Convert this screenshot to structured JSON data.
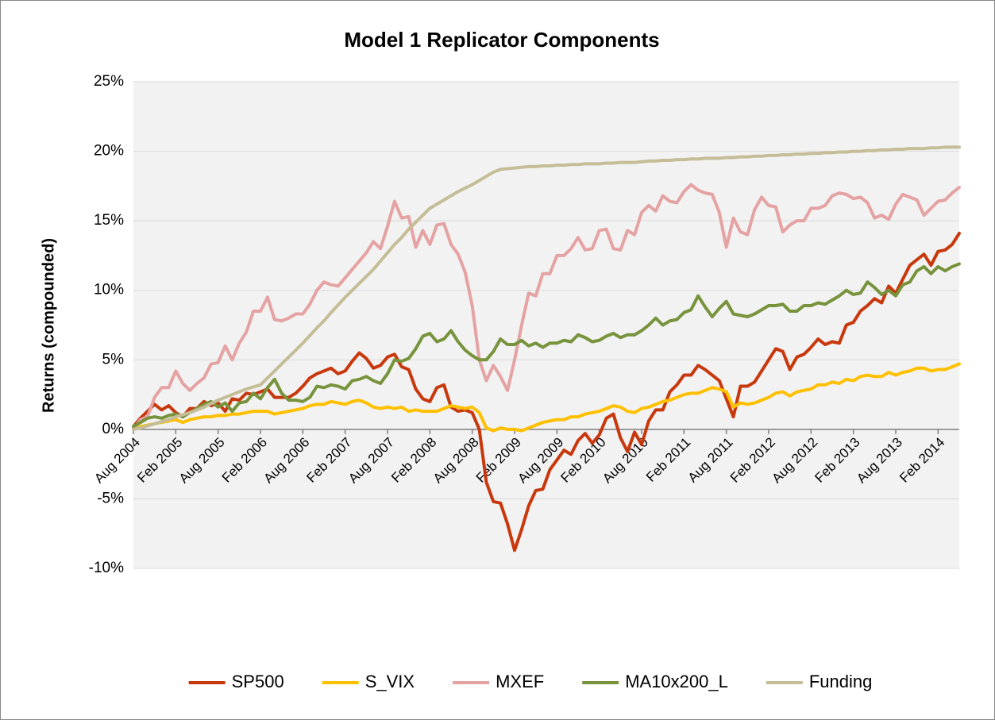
{
  "chart_data": {
    "type": "line",
    "title": "Model 1 Replicator Components",
    "y_label": "Returns (compounded)",
    "categories": [
      "Aug 2004",
      null,
      null,
      null,
      null,
      null,
      "Feb 2005",
      null,
      null,
      null,
      null,
      null,
      "Aug 2005",
      null,
      null,
      null,
      null,
      null,
      "Feb 2006",
      null,
      null,
      null,
      null,
      null,
      "Aug 2006",
      null,
      null,
      null,
      null,
      null,
      "Feb 2007",
      null,
      null,
      null,
      null,
      null,
      "Aug 2007",
      null,
      null,
      null,
      null,
      null,
      "Feb 2008",
      null,
      null,
      null,
      null,
      null,
      "Aug 2008",
      null,
      null,
      null,
      null,
      null,
      "Feb 2009",
      null,
      null,
      null,
      null,
      null,
      "Aug 2009",
      null,
      null,
      null,
      null,
      null,
      "Feb 2010",
      null,
      null,
      null,
      null,
      null,
      "Aug 2010",
      null,
      null,
      null,
      null,
      null,
      "Feb 2011",
      null,
      null,
      null,
      null,
      null,
      "Aug 2011",
      null,
      null,
      null,
      null,
      null,
      "Feb 2012",
      null,
      null,
      null,
      null,
      null,
      "Aug 2012",
      null,
      null,
      null,
      null,
      null,
      "Feb 2013",
      null,
      null,
      null,
      null,
      null,
      "Aug 2013",
      null,
      null,
      null,
      null,
      null,
      "Feb 2014",
      null,
      null,
      null
    ],
    "ylim": [
      -10,
      25
    ],
    "yticks": [
      {
        "value": -10,
        "label": "-10%"
      },
      {
        "value": -5,
        "label": "-5%"
      },
      {
        "value": 0,
        "label": "0%"
      },
      {
        "value": 5,
        "label": "5%"
      },
      {
        "value": 10,
        "label": "10%"
      },
      {
        "value": 15,
        "label": "15%"
      },
      {
        "value": 20,
        "label": "20%"
      },
      {
        "value": 25,
        "label": "25%"
      }
    ],
    "grid": true,
    "legend": "bottom",
    "series": [
      {
        "name": "SP500",
        "color": "#c8380d",
        "values": [
          0.2,
          0.8,
          1.3,
          1.8,
          1.4,
          1.7,
          1.2,
          0.9,
          1.5,
          1.5,
          2.0,
          1.7,
          1.9,
          1.3,
          2.2,
          2.1,
          2.6,
          2.5,
          2.7,
          2.9,
          2.3,
          2.3,
          2.3,
          2.6,
          3.1,
          3.7,
          4.0,
          4.2,
          4.4,
          4.0,
          4.2,
          4.9,
          5.5,
          5.1,
          4.4,
          4.6,
          5.2,
          5.4,
          4.5,
          4.3,
          2.9,
          2.2,
          2.0,
          3.0,
          3.2,
          1.6,
          1.3,
          1.4,
          1.2,
          0,
          -3.8,
          -5.2,
          -5.3,
          -6.8,
          -8.7,
          -7.2,
          -5.5,
          -4.4,
          -4.3,
          -2.9,
          -2.2,
          -1.5,
          -1.8,
          -0.8,
          -0.3,
          -1.0,
          -0.4,
          0.8,
          1.1,
          -0.6,
          -1.6,
          -0.2,
          -1.1,
          0.6,
          1.4,
          1.4,
          2.7,
          3.2,
          3.9,
          3.9,
          4.6,
          4.3,
          3.9,
          3.5,
          2.2,
          0.9,
          3.1,
          3.1,
          3.4,
          4.2,
          5.0,
          5.8,
          5.6,
          4.3,
          5.2,
          5.4,
          5.9,
          6.5,
          6.1,
          6.3,
          6.2,
          7.5,
          7.7,
          8.5,
          8.9,
          9.4,
          9.1,
          10.3,
          9.8,
          10.8,
          11.8,
          12.2,
          12.6,
          11.8,
          12.8,
          12.9,
          13.3,
          14.1
        ]
      },
      {
        "name": "S_VIX",
        "color": "#ffc000",
        "values": [
          0,
          0.2,
          0.3,
          0.4,
          0.5,
          0.6,
          0.7,
          0.5,
          0.7,
          0.8,
          0.9,
          0.9,
          1.0,
          1.0,
          1.1,
          1.1,
          1.2,
          1.3,
          1.3,
          1.3,
          1.1,
          1.2,
          1.3,
          1.4,
          1.5,
          1.7,
          1.8,
          1.8,
          2.0,
          1.9,
          1.8,
          2.0,
          2.1,
          1.9,
          1.6,
          1.5,
          1.6,
          1.5,
          1.6,
          1.3,
          1.4,
          1.3,
          1.3,
          1.3,
          1.5,
          1.7,
          1.6,
          1.5,
          1.6,
          1.2,
          0.1,
          -0.1,
          0.1,
          0.0,
          0.0,
          -0.1,
          0.1,
          0.3,
          0.5,
          0.6,
          0.7,
          0.7,
          0.9,
          0.9,
          1.1,
          1.2,
          1.3,
          1.5,
          1.7,
          1.6,
          1.3,
          1.2,
          1.5,
          1.6,
          1.8,
          2.0,
          2.1,
          2.3,
          2.5,
          2.6,
          2.6,
          2.8,
          3.0,
          2.9,
          2.7,
          1.6,
          1.9,
          1.8,
          1.9,
          2.1,
          2.3,
          2.6,
          2.7,
          2.4,
          2.7,
          2.8,
          2.9,
          3.2,
          3.2,
          3.4,
          3.3,
          3.6,
          3.5,
          3.8,
          3.9,
          3.8,
          3.8,
          4.1,
          3.9,
          4.1,
          4.2,
          4.4,
          4.4,
          4.2,
          4.3,
          4.3,
          4.5,
          4.7
        ]
      },
      {
        "name": "MXEF",
        "color": "#e5a2a3",
        "values": [
          0,
          0.7,
          0.9,
          2.3,
          3.0,
          3.0,
          4.2,
          3.3,
          2.8,
          3.3,
          3.7,
          4.7,
          4.8,
          6.0,
          5.0,
          6.2,
          7.0,
          8.5,
          8.5,
          9.5,
          7.9,
          7.8,
          8.0,
          8.3,
          8.3,
          9.0,
          10.0,
          10.6,
          10.4,
          10.3,
          10.9,
          11.5,
          12.1,
          12.7,
          13.5,
          13.0,
          14.6,
          16.4,
          15.2,
          15.3,
          13.1,
          14.3,
          13.3,
          14.7,
          14.8,
          13.3,
          12.6,
          11.3,
          8.9,
          5.0,
          3.5,
          4.6,
          3.8,
          2.8,
          5.0,
          7.5,
          9.8,
          9.6,
          11.2,
          11.2,
          12.5,
          12.5,
          13.0,
          13.8,
          12.9,
          13.0,
          14.3,
          14.4,
          13.0,
          12.9,
          14.3,
          14.0,
          15.6,
          16.1,
          15.7,
          16.8,
          16.4,
          16.3,
          17.1,
          17.6,
          17.2,
          17.0,
          16.9,
          15.6,
          13.1,
          15.2,
          14.2,
          14.0,
          15.8,
          16.7,
          16.1,
          16.0,
          14.2,
          14.7,
          15.0,
          15.0,
          15.9,
          15.9,
          16.1,
          16.8,
          17.0,
          16.9,
          16.6,
          16.7,
          16.3,
          15.2,
          15.4,
          15.1,
          16.2,
          16.9,
          16.7,
          16.5,
          15.4,
          15.9,
          16.4,
          16.5,
          17.0,
          17.4
        ]
      },
      {
        "name": "MA10x200_L",
        "color": "#77933c",
        "values": [
          0.2,
          0.5,
          0.8,
          0.9,
          0.8,
          1.0,
          1.1,
          0.9,
          1.2,
          1.5,
          1.8,
          2.0,
          1.6,
          1.9,
          1.3,
          1.9,
          2.0,
          2.6,
          2.2,
          3.0,
          3.6,
          2.6,
          2.1,
          2.1,
          2.0,
          2.3,
          3.1,
          3.0,
          3.2,
          3.1,
          2.9,
          3.5,
          3.6,
          3.8,
          3.5,
          3.3,
          4.0,
          5.0,
          4.9,
          5.1,
          5.8,
          6.7,
          6.9,
          6.3,
          6.5,
          7.1,
          6.3,
          5.7,
          5.3,
          5.0,
          5.0,
          5.6,
          6.5,
          6.1,
          6.1,
          6.4,
          6.0,
          6.2,
          5.9,
          6.2,
          6.2,
          6.4,
          6.3,
          6.8,
          6.6,
          6.3,
          6.4,
          6.7,
          6.9,
          6.6,
          6.8,
          6.8,
          7.1,
          7.5,
          8.0,
          7.5,
          7.8,
          7.9,
          8.4,
          8.6,
          9.6,
          8.8,
          8.1,
          8.7,
          9.2,
          8.3,
          8.2,
          8.1,
          8.3,
          8.6,
          8.9,
          8.9,
          9.0,
          8.5,
          8.5,
          8.9,
          8.9,
          9.1,
          9.0,
          9.3,
          9.6,
          10.0,
          9.7,
          9.8,
          10.6,
          10.2,
          9.7,
          10.0,
          9.6,
          10.4,
          10.6,
          11.4,
          11.7,
          11.2,
          11.7,
          11.4,
          11.7,
          11.9
        ]
      },
      {
        "name": "Funding",
        "color": "#c4bd97",
        "values": [
          0,
          0.1,
          0.25,
          0.4,
          0.55,
          0.7,
          0.9,
          1.05,
          1.2,
          1.4,
          1.6,
          1.85,
          2.1,
          2.3,
          2.5,
          2.7,
          2.9,
          3.05,
          3.2,
          3.7,
          4.2,
          4.7,
          5.2,
          5.7,
          6.2,
          6.75,
          7.3,
          7.8,
          8.4,
          8.95,
          9.5,
          10.0,
          10.5,
          11.0,
          11.5,
          12.1,
          12.7,
          13.3,
          13.8,
          14.4,
          14.9,
          15.4,
          15.9,
          16.2,
          16.5,
          16.8,
          17.1,
          17.35,
          17.6,
          17.9,
          18.2,
          18.5,
          18.7,
          18.75,
          18.8,
          18.85,
          18.9,
          18.9,
          18.95,
          18.95,
          19.0,
          19.0,
          19.05,
          19.05,
          19.1,
          19.1,
          19.1,
          19.15,
          19.15,
          19.2,
          19.2,
          19.2,
          19.25,
          19.3,
          19.3,
          19.35,
          19.35,
          19.4,
          19.4,
          19.45,
          19.45,
          19.5,
          19.5,
          19.5,
          19.55,
          19.55,
          19.6,
          19.6,
          19.65,
          19.65,
          19.7,
          19.7,
          19.75,
          19.75,
          19.8,
          19.8,
          19.85,
          19.85,
          19.9,
          19.9,
          19.95,
          19.95,
          20.0,
          20.0,
          20.05,
          20.05,
          20.1,
          20.1,
          20.15,
          20.15,
          20.2,
          20.2,
          20.2,
          20.25,
          20.25,
          20.3,
          20.3,
          20.3
        ]
      }
    ]
  }
}
